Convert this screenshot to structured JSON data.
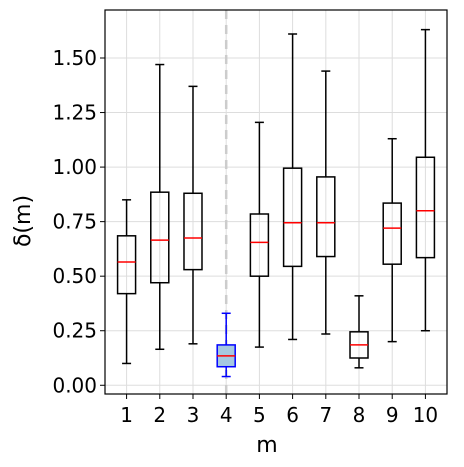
{
  "chart_data": {
    "type": "box",
    "xlabel": "m",
    "ylabel": "δ(m)",
    "ylim": [
      -0.04,
      1.72
    ],
    "yticks": [
      "0.00",
      "0.25",
      "0.50",
      "0.75",
      "1.00",
      "1.25",
      "1.50"
    ],
    "ytick_values": [
      0.0,
      0.25,
      0.5,
      0.75,
      1.0,
      1.25,
      1.5
    ],
    "categories": [
      "1",
      "2",
      "3",
      "4",
      "5",
      "6",
      "7",
      "8",
      "9",
      "10"
    ],
    "grid": true,
    "vertical_reference_line_at": "4",
    "highlight_category": "4",
    "colors": {
      "box_default": "#000000",
      "median": "#ff0000",
      "highlight_box": "#0000ff",
      "highlight_fill": "#a6c8e0",
      "reference_line": "#cccccc",
      "grid": "#dddddd"
    },
    "boxes": [
      {
        "category": "1",
        "whisker_low": 0.1,
        "q1": 0.42,
        "median": 0.565,
        "q3": 0.685,
        "whisker_high": 0.85
      },
      {
        "category": "2",
        "whisker_low": 0.165,
        "q1": 0.47,
        "median": 0.665,
        "q3": 0.885,
        "whisker_high": 1.47
      },
      {
        "category": "3",
        "whisker_low": 0.19,
        "q1": 0.53,
        "median": 0.675,
        "q3": 0.88,
        "whisker_high": 1.37
      },
      {
        "category": "4",
        "whisker_low": 0.04,
        "q1": 0.085,
        "median": 0.135,
        "q3": 0.185,
        "whisker_high": 0.33
      },
      {
        "category": "5",
        "whisker_low": 0.175,
        "q1": 0.5,
        "median": 0.655,
        "q3": 0.785,
        "whisker_high": 1.205
      },
      {
        "category": "6",
        "whisker_low": 0.21,
        "q1": 0.545,
        "median": 0.745,
        "q3": 0.995,
        "whisker_high": 1.61
      },
      {
        "category": "7",
        "whisker_low": 0.235,
        "q1": 0.59,
        "median": 0.745,
        "q3": 0.955,
        "whisker_high": 1.44
      },
      {
        "category": "8",
        "whisker_low": 0.08,
        "q1": 0.125,
        "median": 0.185,
        "q3": 0.245,
        "whisker_high": 0.41
      },
      {
        "category": "9",
        "whisker_low": 0.2,
        "q1": 0.555,
        "median": 0.72,
        "q3": 0.835,
        "whisker_high": 1.13
      },
      {
        "category": "10",
        "whisker_low": 0.25,
        "q1": 0.585,
        "median": 0.8,
        "q3": 1.045,
        "whisker_high": 1.63
      }
    ]
  }
}
